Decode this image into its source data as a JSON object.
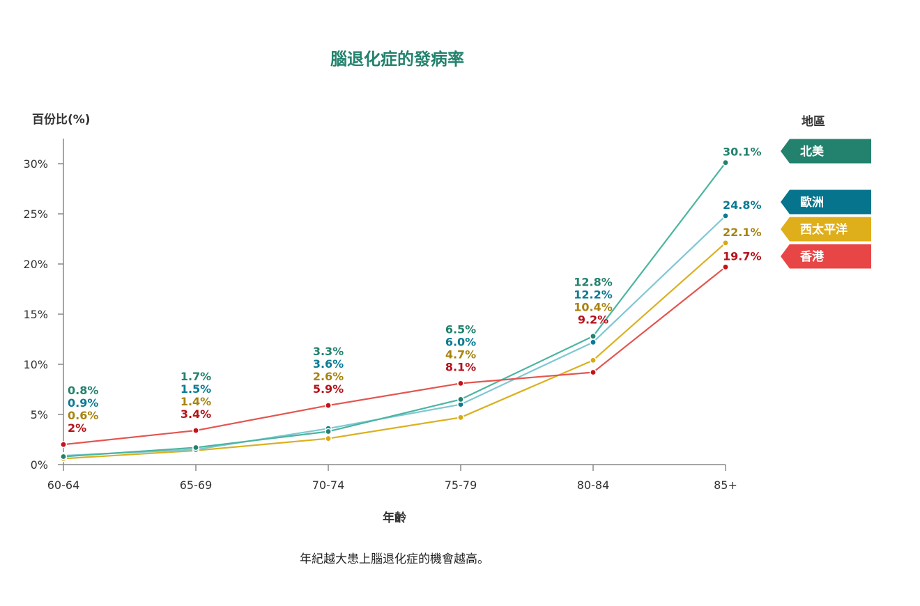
{
  "chart_data": {
    "type": "line",
    "title": "腦退化症的發病率",
    "ylabel": "百份比(%)",
    "xlabel": "年齡",
    "legend_title": "地區",
    "caption": "年紀越大患上腦退化症的機會越高。",
    "categories": [
      "60-64",
      "65-69",
      "70-74",
      "75-79",
      "80-84",
      "85+"
    ],
    "ylim": [
      0,
      32.5
    ],
    "yticks": [
      0,
      5,
      10,
      15,
      20,
      25,
      30
    ],
    "ytick_labels": [
      "0%",
      "5%",
      "10%",
      "15%",
      "20%",
      "25%",
      "30%"
    ],
    "legend_position": "right",
    "series": [
      {
        "key": "na",
        "name": "北美",
        "line_color": "#4ab5a0",
        "dot_color": "#23826d",
        "label_color": "#23826d",
        "legend_color": "#23826d",
        "values": [
          0.8,
          1.7,
          3.3,
          6.5,
          12.8,
          30.1
        ],
        "labels": [
          "0.8%",
          "1.7%",
          "3.3%",
          "6.5%",
          "12.8%",
          "30.1%"
        ]
      },
      {
        "key": "eu",
        "name": "歐洲",
        "line_color": "#7fc7d3",
        "dot_color": "#0c7b93",
        "label_color": "#0c7b93",
        "legend_color": "#06748d",
        "values": [
          0.9,
          1.5,
          3.6,
          6.0,
          12.2,
          24.8
        ],
        "labels": [
          "0.9%",
          "1.5%",
          "3.6%",
          "6.0%",
          "12.2%",
          "24.8%"
        ]
      },
      {
        "key": "wp",
        "name": "西太平洋",
        "line_color": "#dbb020",
        "dot_color": "#d9a815",
        "label_color": "#a88410",
        "legend_color": "#dfae1b",
        "values": [
          0.6,
          1.4,
          2.6,
          4.7,
          10.4,
          22.1
        ],
        "labels": [
          "0.6%",
          "1.4%",
          "2.6%",
          "4.7%",
          "10.4%",
          "22.1%"
        ]
      },
      {
        "key": "hk",
        "name": "香港",
        "line_color": "#e45550",
        "dot_color": "#c4141a",
        "label_color": "#b5121a",
        "legend_color": "#e84646",
        "values": [
          2.0,
          3.4,
          5.9,
          8.1,
          9.2,
          19.7
        ],
        "labels": [
          "2%",
          "3.4%",
          "5.9%",
          "8.1%",
          "9.2%",
          "19.7%"
        ]
      }
    ]
  },
  "colors": {
    "title": "#23826d",
    "axis": "#888888",
    "text": "#333333"
  }
}
